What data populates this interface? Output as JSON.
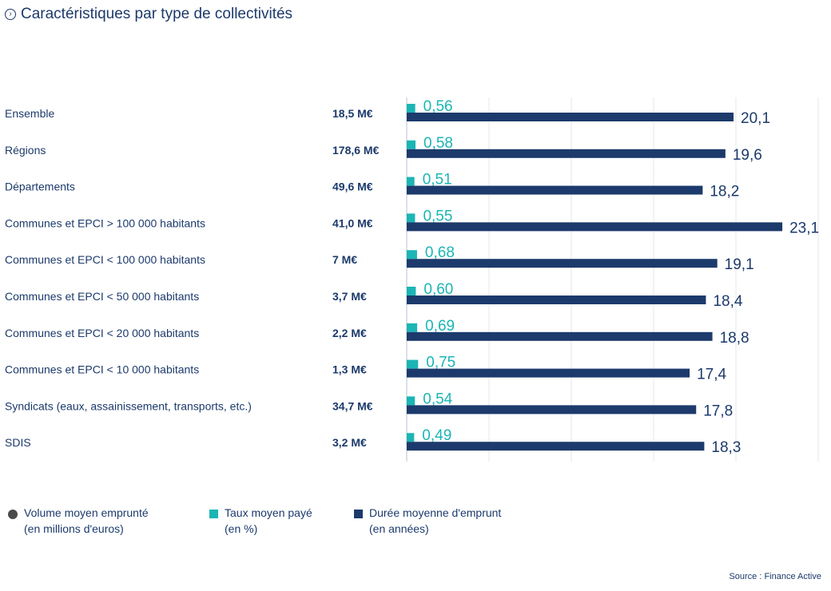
{
  "header": {
    "title": "Caractéristiques par type de collectivités",
    "title_icon": "chevron-right-circle-icon"
  },
  "chart_data": {
    "type": "bar",
    "title": "Caractéristiques par type de collectivités",
    "categories": [
      "Ensemble",
      "Régions",
      "Départements",
      "Communes et EPCI > 100 000 habitants",
      "Communes et EPCI < 100 000 habitants",
      "Communes et EPCI < 50 000 habitants",
      "Communes et EPCI < 20 000 habitants",
      "Communes et EPCI < 10 000 habitants",
      "Syndicats (eaux, assainissement, transports, etc.)",
      "SDIS"
    ],
    "volumes": [
      "18,5 M€",
      "178,6 M€",
      "49,6 M€",
      "41,0 M€",
      "7 M€",
      "3,7 M€",
      "2,2 M€",
      "1,3 M€",
      "34,7 M€",
      "3,2 M€"
    ],
    "series": [
      {
        "name": "Taux moyen payé (en %)",
        "color": "#1bb5b5",
        "values": [
          0.56,
          0.58,
          0.51,
          0.55,
          0.68,
          0.6,
          0.69,
          0.75,
          0.54,
          0.49
        ],
        "labels": [
          "0,56",
          "0,58",
          "0,51",
          "0,55",
          "0,68",
          "0,60",
          "0,69",
          "0,75",
          "0,54",
          "0,49"
        ]
      },
      {
        "name": "Durée moyenne d'emprunt (en années)",
        "color": "#1c3a6b",
        "values": [
          20.1,
          19.6,
          18.2,
          23.1,
          19.1,
          18.4,
          18.8,
          17.4,
          17.8,
          18.3
        ],
        "labels": [
          "20,1",
          "19,6",
          "18,2",
          "23,1",
          "19,1",
          "18,4",
          "18,8",
          "17,4",
          "17,8",
          "18,3"
        ]
      }
    ],
    "gridlines": true,
    "legend_position": "bottom"
  },
  "legend": {
    "volume": {
      "line1": "Volume moyen emprunté",
      "line2": "(en millions d'euros)",
      "color": "#4a4a4a"
    },
    "taux": {
      "line1": "Taux moyen payé",
      "line2": "(en %)",
      "color": "#1bb5b5"
    },
    "duree": {
      "line1": "Durée moyenne d'emprunt",
      "line2": "(en années)",
      "color": "#1c3a6b"
    }
  },
  "footer": {
    "source": "Source : Finance Active"
  }
}
